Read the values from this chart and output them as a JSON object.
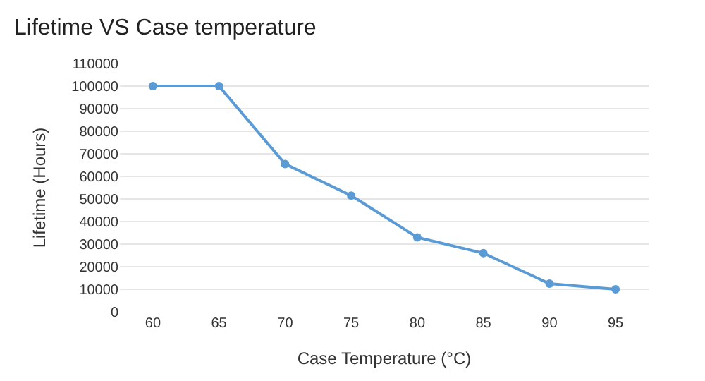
{
  "chart_data": {
    "type": "line",
    "title": "Lifetime VS Case temperature",
    "xlabel": "Case Temperature (°C)",
    "ylabel": "Lifetime (Hours)",
    "categories": [
      "60",
      "65",
      "70",
      "75",
      "80",
      "85",
      "90",
      "95"
    ],
    "series": [
      {
        "color": "#5b9bd5",
        "values": [
          100000,
          100000,
          65500,
          51500,
          33000,
          26000,
          12500,
          10000
        ]
      }
    ],
    "ylim": [
      0,
      110000
    ],
    "yticks": [
      0,
      10000,
      20000,
      30000,
      40000,
      50000,
      60000,
      70000,
      80000,
      90000,
      100000,
      110000
    ],
    "grid": "y",
    "marker": "circle",
    "line_style": "solid"
  }
}
